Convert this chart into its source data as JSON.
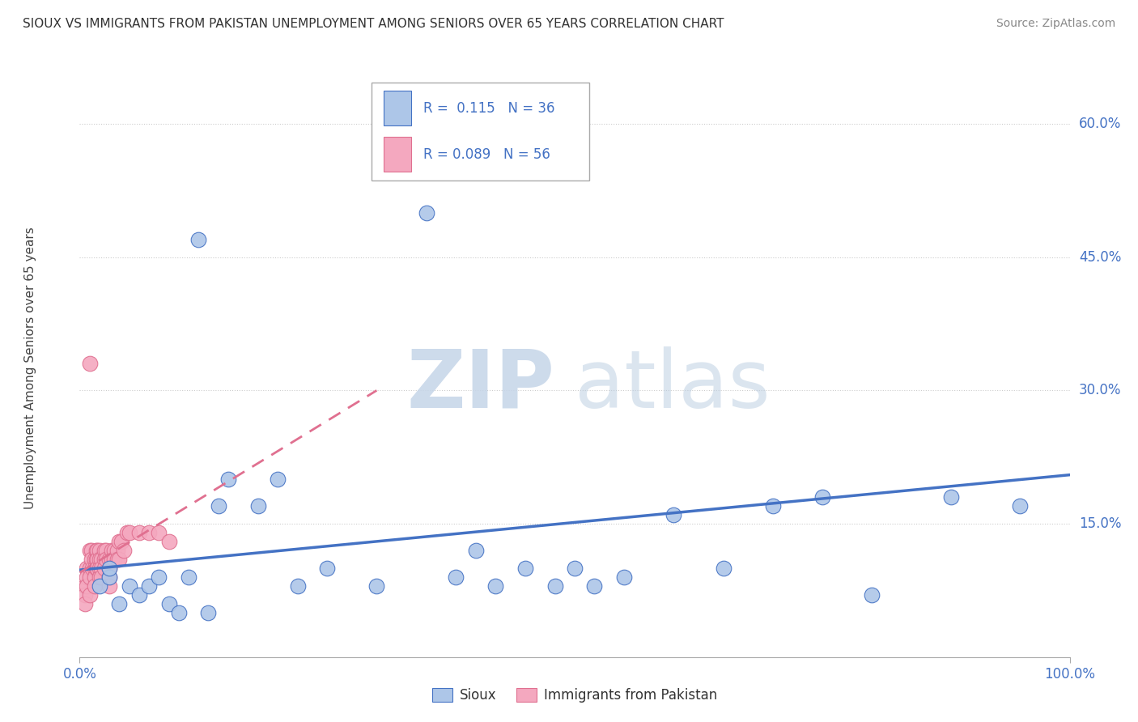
{
  "title": "SIOUX VS IMMIGRANTS FROM PAKISTAN UNEMPLOYMENT AMONG SENIORS OVER 65 YEARS CORRELATION CHART",
  "source": "Source: ZipAtlas.com",
  "ylabel": "Unemployment Among Seniors over 65 years",
  "xlim": [
    0.0,
    1.0
  ],
  "ylim": [
    0.0,
    0.65
  ],
  "sioux_color": "#adc6e8",
  "pakistan_color": "#f4a8bf",
  "sioux_line_color": "#4472c4",
  "pakistan_line_color": "#e07090",
  "sioux_r": "0.115",
  "sioux_n": "36",
  "pakistan_r": "0.089",
  "pakistan_n": "56",
  "sioux_x": [
    0.02,
    0.03,
    0.03,
    0.04,
    0.05,
    0.06,
    0.07,
    0.08,
    0.09,
    0.1,
    0.11,
    0.12,
    0.13,
    0.14,
    0.15,
    0.18,
    0.2,
    0.22,
    0.25,
    0.3,
    0.35,
    0.38,
    0.4,
    0.42,
    0.45,
    0.48,
    0.5,
    0.52,
    0.55,
    0.6,
    0.65,
    0.7,
    0.75,
    0.8,
    0.88,
    0.95
  ],
  "sioux_y": [
    0.08,
    0.09,
    0.1,
    0.06,
    0.08,
    0.07,
    0.08,
    0.09,
    0.06,
    0.05,
    0.09,
    0.47,
    0.05,
    0.17,
    0.2,
    0.17,
    0.2,
    0.08,
    0.1,
    0.08,
    0.5,
    0.09,
    0.12,
    0.08,
    0.1,
    0.08,
    0.1,
    0.08,
    0.09,
    0.16,
    0.1,
    0.17,
    0.18,
    0.07,
    0.18,
    0.17
  ],
  "pakistan_x": [
    0.005,
    0.005,
    0.005,
    0.007,
    0.007,
    0.007,
    0.01,
    0.01,
    0.01,
    0.01,
    0.01,
    0.012,
    0.012,
    0.013,
    0.015,
    0.015,
    0.015,
    0.015,
    0.017,
    0.017,
    0.017,
    0.018,
    0.018,
    0.018,
    0.02,
    0.02,
    0.02,
    0.02,
    0.022,
    0.022,
    0.022,
    0.025,
    0.025,
    0.025,
    0.027,
    0.027,
    0.03,
    0.03,
    0.03,
    0.03,
    0.032,
    0.032,
    0.035,
    0.035,
    0.038,
    0.038,
    0.04,
    0.04,
    0.042,
    0.045,
    0.048,
    0.05,
    0.06,
    0.07,
    0.08,
    0.09
  ],
  "pakistan_y": [
    0.08,
    0.07,
    0.06,
    0.1,
    0.09,
    0.08,
    0.33,
    0.12,
    0.1,
    0.09,
    0.07,
    0.12,
    0.11,
    0.1,
    0.11,
    0.1,
    0.09,
    0.08,
    0.12,
    0.11,
    0.1,
    0.12,
    0.11,
    0.1,
    0.12,
    0.11,
    0.1,
    0.09,
    0.11,
    0.1,
    0.09,
    0.12,
    0.11,
    0.1,
    0.12,
    0.11,
    0.11,
    0.1,
    0.09,
    0.08,
    0.12,
    0.11,
    0.12,
    0.11,
    0.12,
    0.11,
    0.13,
    0.11,
    0.13,
    0.12,
    0.14,
    0.14,
    0.14,
    0.14,
    0.14,
    0.13
  ],
  "sioux_trend": [
    0.095,
    0.205
  ],
  "pakistan_trend": [
    0.1,
    0.3
  ],
  "yticks": [
    0.15,
    0.3,
    0.45,
    0.6
  ],
  "ytick_labels": [
    "15.0%",
    "30.0%",
    "45.0%",
    "60.0%"
  ]
}
